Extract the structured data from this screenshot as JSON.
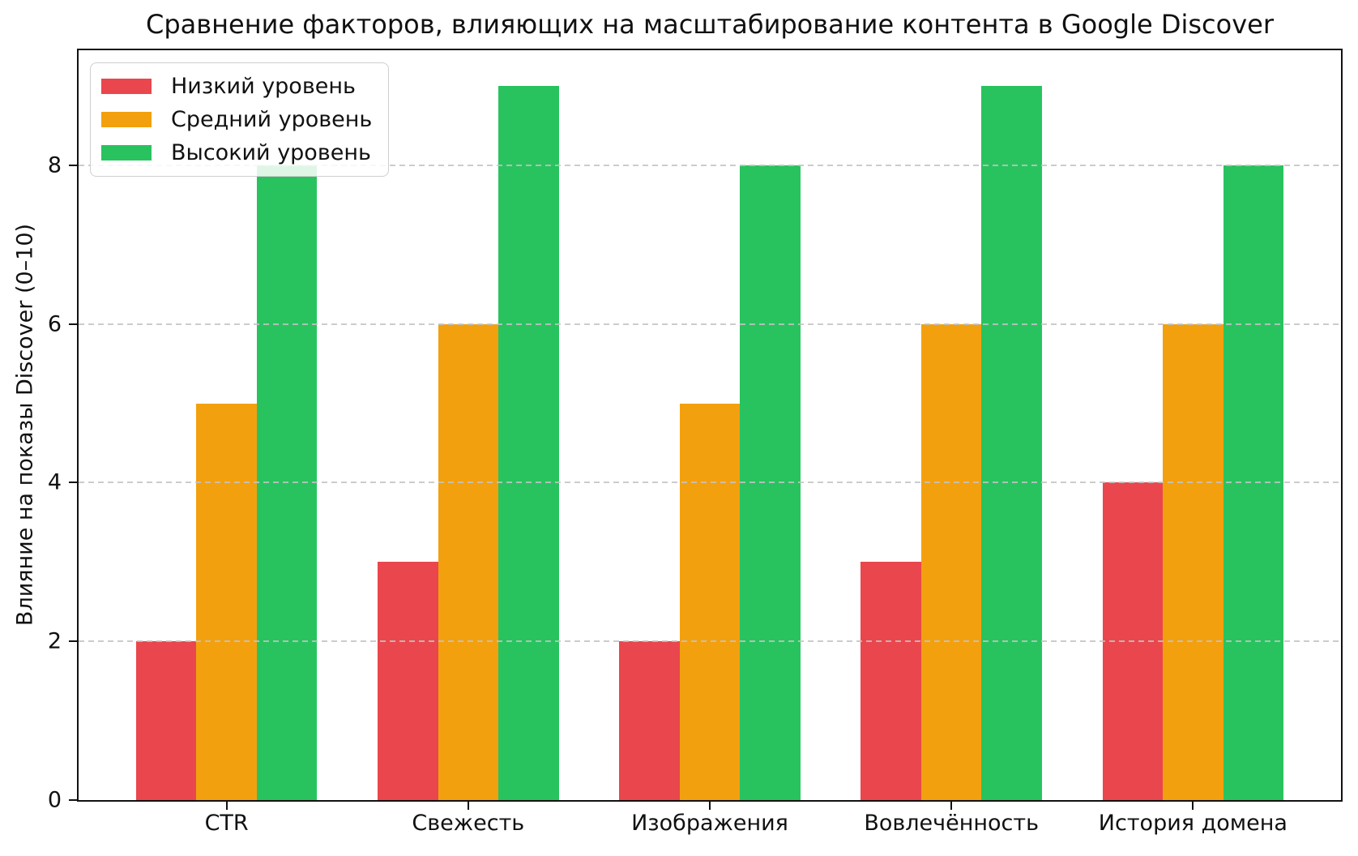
{
  "chart_data": {
    "type": "bar",
    "title": "Сравнение факторов, влияющих на масштабирование контента в Google Discover",
    "xlabel": "",
    "ylabel": "Влияние на показы Discover (0–10)",
    "categories": [
      "CTR",
      "Свежесть",
      "Изображения",
      "Вовлечённость",
      "История домена"
    ],
    "series": [
      {
        "name": "Низкий уровень",
        "color": "#e9474d",
        "values": [
          2,
          3,
          2,
          3,
          4
        ]
      },
      {
        "name": "Средний уровень",
        "color": "#f3a00f",
        "values": [
          5,
          6,
          5,
          6,
          6
        ]
      },
      {
        "name": "Высокий уровень",
        "color": "#28c35f",
        "values": [
          8,
          9,
          8,
          9,
          8
        ]
      }
    ],
    "yticks": [
      0,
      2,
      4,
      6,
      8
    ],
    "ylim": [
      0,
      9.45
    ],
    "grid": "horizontal-dashed-over-bars",
    "legend_position": "upper-left"
  },
  "colors": {
    "grid": "#c3c3c3",
    "axis": "#111111",
    "legend_border": "#cfcfcf",
    "background": "#ffffff"
  }
}
